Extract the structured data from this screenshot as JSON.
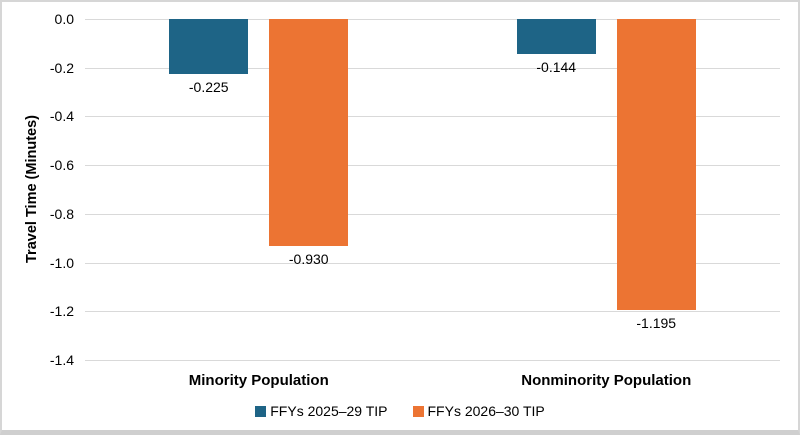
{
  "chart_data": {
    "type": "bar",
    "categories": [
      "Minority Population",
      "Nonminority Population"
    ],
    "series": [
      {
        "name": "FFYs 2025–29 TIP",
        "color": "#1e6486",
        "values": [
          -0.225,
          -0.144
        ],
        "data_labels": [
          "-0.225",
          "-0.144"
        ]
      },
      {
        "name": "FFYs 2026–30 TIP",
        "color": "#ec7433",
        "values": [
          -0.93,
          -1.195
        ],
        "data_labels": [
          "-0.930",
          "-1.195"
        ]
      }
    ],
    "title": "",
    "xlabel": "",
    "ylabel": "Travel Time (Minutes)",
    "ylim": [
      -1.4,
      0.0
    ],
    "yticks": [
      0.0,
      -0.2,
      -0.4,
      -0.6,
      -0.8,
      -1.0,
      -1.2,
      -1.4
    ],
    "ytick_labels": [
      "0.0",
      "-0.2",
      "-0.4",
      "-0.6",
      "-0.8",
      "-1.0",
      "-1.2",
      "-1.4"
    ],
    "grid": true,
    "legend_position": "bottom"
  },
  "colors": {
    "series1": "#1e6486",
    "series2": "#ec7433",
    "gridline": "#d9d9d9",
    "border": "#d6d6d6",
    "text": "#000000",
    "background": "#ffffff"
  }
}
